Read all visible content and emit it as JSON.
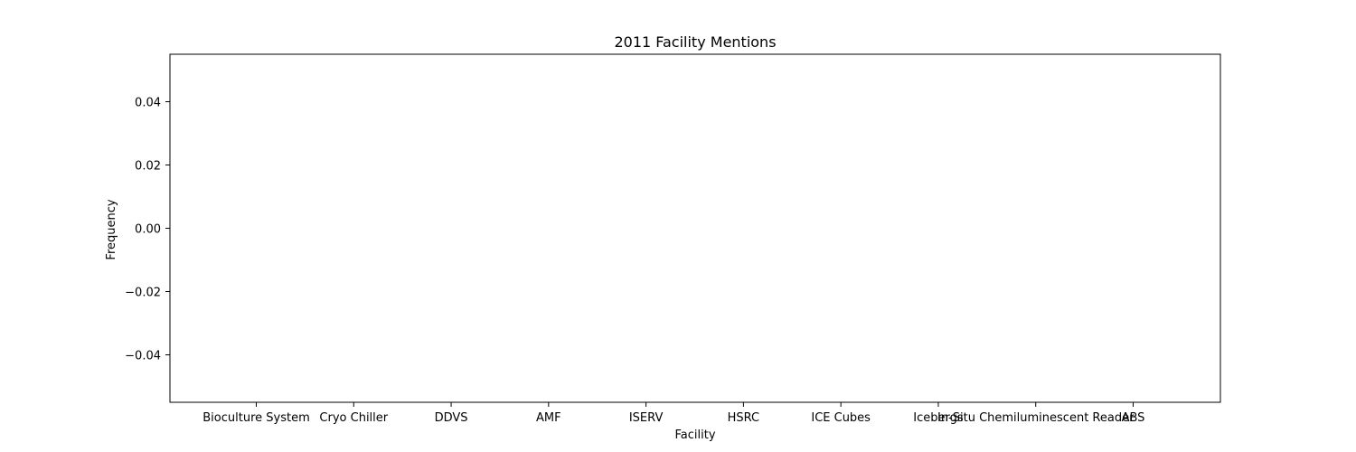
{
  "chart_data": {
    "type": "bar",
    "title": "2011 Facility Mentions",
    "xlabel": "Facility",
    "ylabel": "Frequency",
    "categories": [
      "Bioculture System",
      "Cryo Chiller",
      "DDVS",
      "AMF",
      "ISERV",
      "HSRC",
      "ICE Cubes",
      "Icebergs",
      "In-Situ Chemiluminescent Reader",
      "ABS"
    ],
    "values": [
      0,
      0,
      0,
      0,
      0,
      0,
      0,
      0,
      0,
      0
    ],
    "ylim": [
      -0.055,
      0.055
    ],
    "yticks": [
      -0.04,
      -0.02,
      0.0,
      0.02,
      0.04
    ],
    "ytick_labels": [
      "−0.04",
      "−0.02",
      "0.00",
      "0.02",
      "0.04"
    ],
    "grid": false,
    "legend": "none",
    "colors": {
      "bar": "#1f77b4",
      "axes": "#000000",
      "background": "#ffffff"
    }
  }
}
